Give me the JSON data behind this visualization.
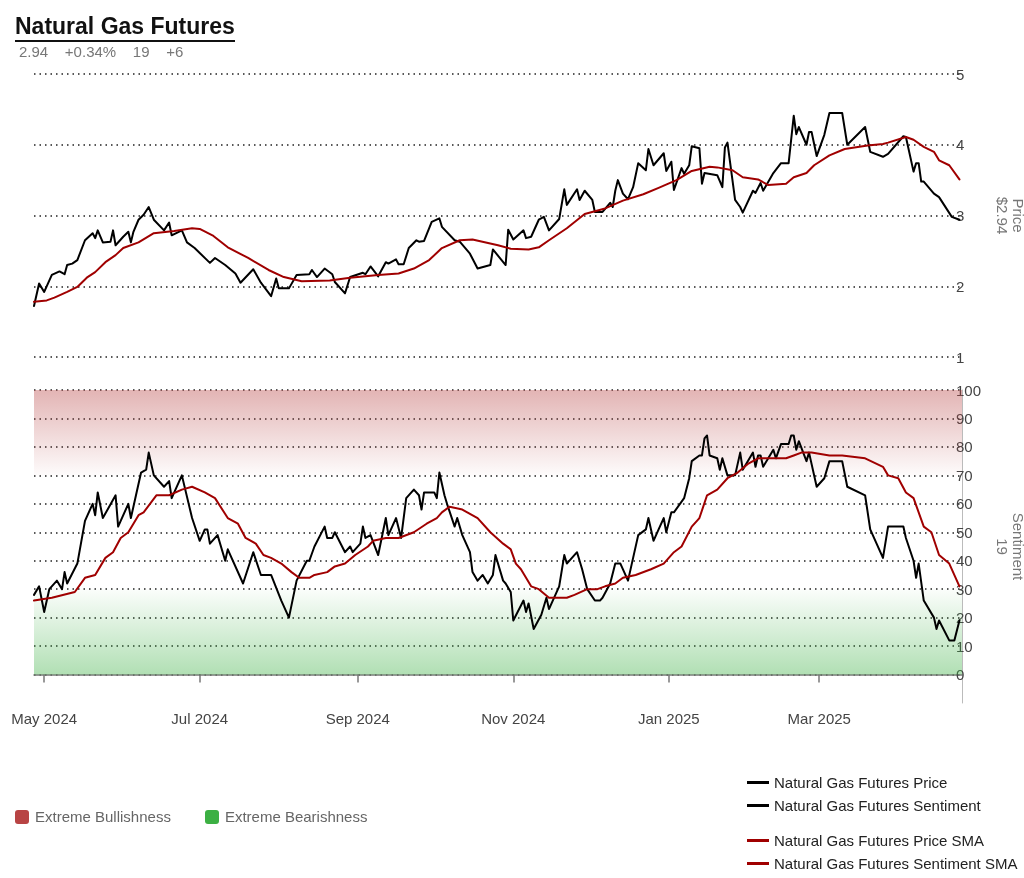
{
  "chart_data": [
    {
      "type": "line",
      "title": "Natural Gas Futures",
      "subtitle": "2.94    +0.34%    19    +6",
      "ylabel": "Price\n$2.94",
      "xlim": [
        "2024-04-27",
        "2025-04-26"
      ],
      "ylim": [
        1,
        5
      ],
      "yticks": [
        1,
        2,
        3,
        4,
        5
      ],
      "grid": "y",
      "tick_labels": "y",
      "legend": "bottom right",
      "series": [
        {
          "name": "Natural Gas Futures Price",
          "color": "#000000",
          "x": [
            "2024-04-27",
            "2024-04-29",
            "2024-05-01",
            "2024-05-04",
            "2024-05-07",
            "2024-05-09",
            "2024-05-10",
            "2024-05-12",
            "2024-05-14",
            "2024-05-17",
            "2024-05-20",
            "2024-05-21",
            "2024-05-22",
            "2024-05-24",
            "2024-05-27",
            "2024-05-28",
            "2024-05-29",
            "2024-06-01",
            "2024-06-03",
            "2024-06-04",
            "2024-06-05",
            "2024-06-07",
            "2024-06-09",
            "2024-06-11",
            "2024-06-13",
            "2024-06-17",
            "2024-06-19",
            "2024-06-20",
            "2024-06-24",
            "2024-06-26",
            "2024-06-29",
            "2024-07-05",
            "2024-07-07",
            "2024-07-11",
            "2024-07-15",
            "2024-07-17",
            "2024-07-22",
            "2024-07-25",
            "2024-07-29",
            "2024-07-31",
            "2024-08-01",
            "2024-08-05",
            "2024-08-08",
            "2024-08-13",
            "2024-08-14",
            "2024-08-16",
            "2024-08-19",
            "2024-08-22",
            "2024-08-23",
            "2024-08-27",
            "2024-08-29",
            "2024-09-03",
            "2024-09-04",
            "2024-09-06",
            "2024-09-09",
            "2024-09-12",
            "2024-09-13",
            "2024-09-16",
            "2024-09-17",
            "2024-09-19",
            "2024-09-21",
            "2024-09-24",
            "2024-09-25",
            "2024-09-27",
            "2024-09-30",
            "2024-10-03",
            "2024-10-04",
            "2024-10-09",
            "2024-10-11",
            "2024-10-15",
            "2024-10-18",
            "2024-10-23",
            "2024-10-24",
            "2024-10-29",
            "2024-10-30",
            "2024-11-01",
            "2024-11-05",
            "2024-11-06",
            "2024-11-08",
            "2024-11-11",
            "2024-11-13",
            "2024-11-15",
            "2024-11-19",
            "2024-11-21",
            "2024-11-22",
            "2024-11-26",
            "2024-11-27",
            "2024-11-29",
            "2024-12-02",
            "2024-12-03",
            "2024-12-06",
            "2024-12-09",
            "2024-12-10",
            "2024-12-11",
            "2024-12-12",
            "2024-12-14",
            "2024-12-16",
            "2024-12-18",
            "2024-12-20",
            "2024-12-23",
            "2024-12-24",
            "2024-12-26",
            "2024-12-30",
            "2024-12-31",
            "2025-01-02",
            "2025-01-03",
            "2025-01-06",
            "2025-01-07",
            "2025-01-09",
            "2025-01-10",
            "2025-01-13",
            "2025-01-14",
            "2025-01-15",
            "2025-01-20",
            "2025-01-22",
            "2025-01-23",
            "2025-01-24",
            "2025-01-27",
            "2025-01-29",
            "2025-01-30",
            "2025-02-03",
            "2025-02-04",
            "2025-02-06",
            "2025-02-07",
            "2025-02-11",
            "2025-02-14",
            "2025-02-17",
            "2025-02-19",
            "2025-02-20",
            "2025-02-21",
            "2025-02-24",
            "2025-02-25",
            "2025-02-26",
            "2025-02-28",
            "2025-03-03",
            "2025-03-05",
            "2025-03-10",
            "2025-03-12",
            "2025-03-19",
            "2025-03-21",
            "2025-03-26",
            "2025-03-28",
            "2025-04-03",
            "2025-04-04",
            "2025-04-07",
            "2025-04-08",
            "2025-04-09",
            "2025-04-10",
            "2025-04-11",
            "2025-04-15",
            "2025-04-17",
            "2025-04-22",
            "2025-04-25"
          ],
          "values": [
            1.72,
            2.04,
            1.92,
            2.16,
            2.21,
            2.17,
            2.3,
            2.32,
            2.37,
            2.65,
            2.75,
            2.68,
            2.79,
            2.62,
            2.63,
            2.79,
            2.58,
            2.7,
            2.77,
            2.62,
            2.77,
            2.94,
            3.01,
            3.12,
            2.94,
            2.79,
            2.9,
            2.72,
            2.79,
            2.62,
            2.54,
            2.33,
            2.4,
            2.3,
            2.18,
            2.05,
            2.24,
            2.05,
            1.86,
            2.11,
            1.97,
            1.97,
            2.16,
            2.17,
            2.23,
            2.13,
            2.25,
            2.17,
            2.06,
            1.9,
            2.13,
            2.19,
            2.17,
            2.28,
            2.14,
            2.34,
            2.32,
            2.38,
            2.31,
            2.31,
            2.54,
            2.65,
            2.63,
            2.64,
            2.91,
            2.96,
            2.84,
            2.65,
            2.63,
            2.46,
            2.25,
            2.3,
            2.52,
            2.3,
            2.8,
            2.66,
            2.79,
            2.68,
            2.7,
            2.94,
            2.98,
            2.79,
            2.95,
            3.37,
            3.15,
            3.37,
            3.22,
            3.35,
            3.22,
            3.05,
            3.05,
            3.18,
            3.12,
            3.35,
            3.5,
            3.31,
            3.23,
            3.4,
            3.74,
            3.64,
            3.94,
            3.71,
            3.88,
            3.63,
            3.76,
            3.36,
            3.67,
            3.59,
            3.71,
            3.98,
            3.95,
            3.45,
            3.6,
            3.57,
            3.4,
            3.96,
            4.03,
            3.22,
            3.12,
            3.04,
            3.35,
            3.32,
            3.46,
            3.35,
            3.6,
            3.74,
            3.74,
            4.41,
            4.15,
            4.25,
            4.0,
            4.18,
            4.18,
            3.84,
            4.14,
            4.45,
            4.45,
            4.0,
            4.25,
            3.9,
            3.83,
            3.87,
            4.12,
            4.11,
            3.62,
            3.74,
            3.74,
            3.48,
            3.48,
            3.31,
            3.26,
            2.98,
            2.94
          ]
        },
        {
          "name": "Natural Gas Futures Price SMA",
          "color": "#a00000",
          "x": [
            "2024-04-27",
            "2024-05-02",
            "2024-05-05",
            "2024-05-10",
            "2024-05-14",
            "2024-05-18",
            "2024-05-21",
            "2024-05-25",
            "2024-05-29",
            "2024-06-01",
            "2024-06-07",
            "2024-06-13",
            "2024-06-21",
            "2024-06-28",
            "2024-07-01",
            "2024-07-06",
            "2024-07-12",
            "2024-07-20",
            "2024-07-28",
            "2024-08-03",
            "2024-08-10",
            "2024-08-21",
            "2024-08-29",
            "2024-09-09",
            "2024-09-17",
            "2024-09-23",
            "2024-09-29",
            "2024-10-04",
            "2024-10-11",
            "2024-10-16",
            "2024-10-26",
            "2024-10-31",
            "2024-11-07",
            "2024-11-11",
            "2024-11-15",
            "2024-11-22",
            "2024-11-29",
            "2024-12-07",
            "2024-12-14",
            "2024-12-22",
            "2024-12-28",
            "2025-01-04",
            "2025-01-10",
            "2025-01-17",
            "2025-01-20",
            "2025-01-26",
            "2025-01-30",
            "2025-02-05",
            "2025-02-09",
            "2025-02-16",
            "2025-02-19",
            "2025-02-24",
            "2025-02-27",
            "2025-03-05",
            "2025-03-11",
            "2025-03-20",
            "2025-03-26",
            "2025-03-28",
            "2025-04-04",
            "2025-04-07",
            "2025-04-11",
            "2025-04-15",
            "2025-04-17",
            "2025-04-21",
            "2025-04-25"
          ],
          "values": [
            1.78,
            1.8,
            1.84,
            1.92,
            1.99,
            2.13,
            2.2,
            2.34,
            2.44,
            2.54,
            2.62,
            2.75,
            2.78,
            2.82,
            2.81,
            2.72,
            2.55,
            2.4,
            2.23,
            2.13,
            2.07,
            2.08,
            2.12,
            2.16,
            2.18,
            2.25,
            2.37,
            2.54,
            2.65,
            2.66,
            2.58,
            2.53,
            2.52,
            2.55,
            2.65,
            2.82,
            3.02,
            3.1,
            3.21,
            3.3,
            3.39,
            3.5,
            3.63,
            3.69,
            3.68,
            3.64,
            3.54,
            3.51,
            3.43,
            3.45,
            3.54,
            3.6,
            3.71,
            3.85,
            3.94,
            3.99,
            4.01,
            4.03,
            4.11,
            4.07,
            3.97,
            3.9,
            3.78,
            3.71,
            3.51
          ]
        }
      ]
    },
    {
      "type": "line",
      "ylabel": "Sentiment\n19",
      "xlim": [
        "2024-04-27",
        "2025-04-26"
      ],
      "xticks": [
        {
          "value": "2024-05-01",
          "label": "May 2024"
        },
        {
          "value": "2024-07-01",
          "label": "Jul 2024"
        },
        {
          "value": "2024-09-01",
          "label": "Sep 2024"
        },
        {
          "value": "2024-11-01",
          "label": "Nov 2024"
        },
        {
          "value": "2025-01-01",
          "label": "Jan 2025"
        },
        {
          "value": "2025-03-01",
          "label": "Mar 2025"
        }
      ],
      "ylim": [
        -10,
        100
      ],
      "yticks": [
        0,
        10,
        20,
        30,
        40,
        50,
        60,
        70,
        80,
        90,
        100
      ],
      "grid": "y",
      "legend": "bottom right",
      "bands": [
        {
          "axis": "y",
          "from": 70,
          "to": 100,
          "label": "Extreme Bullishness",
          "color": "#b84444"
        },
        {
          "axis": "y",
          "from": 0,
          "to": 30,
          "label": "Extreme Bearishness",
          "color": "#3cb043"
        }
      ],
      "series": [
        {
          "name": "Natural Gas Futures Sentiment",
          "color": "#000000",
          "x": [
            "2024-04-27",
            "2024-04-29",
            "2024-05-01",
            "2024-05-03",
            "2024-05-06",
            "2024-05-08",
            "2024-05-09",
            "2024-05-10",
            "2024-05-14",
            "2024-05-15",
            "2024-05-17",
            "2024-05-20",
            "2024-05-21",
            "2024-05-22",
            "2024-05-24",
            "2024-05-29",
            "2024-05-30",
            "2024-06-03",
            "2024-06-04",
            "2024-06-06",
            "2024-06-08",
            "2024-06-10",
            "2024-06-11",
            "2024-06-13",
            "2024-06-17",
            "2024-06-19",
            "2024-06-20",
            "2024-06-24",
            "2024-06-28",
            "2024-07-01",
            "2024-07-03",
            "2024-07-04",
            "2024-07-05",
            "2024-07-08",
            "2024-07-11",
            "2024-07-12",
            "2024-07-18",
            "2024-07-22",
            "2024-07-25",
            "2024-07-29",
            "2024-08-02",
            "2024-08-05",
            "2024-08-08",
            "2024-08-12",
            "2024-08-13",
            "2024-08-15",
            "2024-08-19",
            "2024-08-20",
            "2024-08-22",
            "2024-08-23",
            "2024-08-27",
            "2024-08-29",
            "2024-08-30",
            "2024-09-02",
            "2024-09-03",
            "2024-09-04",
            "2024-09-06",
            "2024-09-09",
            "2024-09-12",
            "2024-09-13",
            "2024-09-16",
            "2024-09-18",
            "2024-09-20",
            "2024-09-23",
            "2024-09-25",
            "2024-09-26",
            "2024-09-27",
            "2024-10-01",
            "2024-10-02",
            "2024-10-03",
            "2024-10-05",
            "2024-10-06",
            "2024-10-09",
            "2024-10-10",
            "2024-10-12",
            "2024-10-15",
            "2024-10-16",
            "2024-10-18",
            "2024-10-20",
            "2024-10-22",
            "2024-10-24",
            "2024-10-25",
            "2024-10-28",
            "2024-10-29",
            "2024-10-31",
            "2024-11-01",
            "2024-11-05",
            "2024-11-06",
            "2024-11-07",
            "2024-11-09",
            "2024-11-12",
            "2024-11-14",
            "2024-11-15",
            "2024-11-19",
            "2024-11-21",
            "2024-11-22",
            "2024-11-26",
            "2024-11-28",
            "2024-11-30",
            "2024-12-03",
            "2024-12-05",
            "2024-12-06",
            "2024-12-09",
            "2024-12-11",
            "2024-12-13",
            "2024-12-16",
            "2024-12-18",
            "2024-12-20",
            "2024-12-23",
            "2024-12-24",
            "2024-12-26",
            "2024-12-28",
            "2024-12-30",
            "2024-12-31",
            "2025-01-02",
            "2025-01-03",
            "2025-01-07",
            "2025-01-09",
            "2025-01-10",
            "2025-01-13",
            "2025-01-14",
            "2025-01-15",
            "2025-01-16",
            "2025-01-17",
            "2025-01-20",
            "2025-01-21",
            "2025-01-22",
            "2025-01-24",
            "2025-01-27",
            "2025-01-29",
            "2025-01-30",
            "2025-02-03",
            "2025-02-04",
            "2025-02-05",
            "2025-02-06",
            "2025-02-07",
            "2025-02-09",
            "2025-02-11",
            "2025-02-12",
            "2025-02-14",
            "2025-02-17",
            "2025-02-18",
            "2025-02-19",
            "2025-02-20",
            "2025-02-21",
            "2025-02-24",
            "2025-02-25",
            "2025-02-28",
            "2025-03-03",
            "2025-03-05",
            "2025-03-10",
            "2025-03-12",
            "2025-03-19",
            "2025-03-21",
            "2025-03-26",
            "2025-03-28",
            "2025-04-03",
            "2025-04-04",
            "2025-04-07",
            "2025-04-08",
            "2025-04-09",
            "2025-04-11",
            "2025-04-15",
            "2025-04-16",
            "2025-04-17",
            "2025-04-21",
            "2025-04-23",
            "2025-04-25"
          ],
          "values": [
            28,
            31,
            22,
            30,
            33,
            30,
            36,
            32,
            39,
            44,
            54,
            60,
            56,
            64,
            55,
            63,
            52,
            60,
            55,
            63,
            71,
            72,
            78,
            70,
            66,
            68,
            62,
            70,
            55,
            47,
            51,
            51,
            46,
            49,
            40,
            44,
            32,
            43,
            35,
            35,
            26,
            20,
            33,
            40,
            40,
            45,
            52,
            48,
            48,
            50,
            43,
            45,
            43,
            46,
            52,
            48,
            49,
            42,
            55,
            49,
            55,
            48,
            62,
            65,
            63,
            58,
            64,
            64,
            62,
            71,
            63,
            60,
            52,
            55,
            49,
            43,
            36,
            33,
            35,
            32,
            35,
            42,
            33,
            32,
            29,
            19,
            26,
            22,
            25,
            16,
            21,
            27,
            23,
            31,
            42,
            39,
            43,
            37,
            30,
            26,
            26,
            27,
            32,
            39,
            39,
            33,
            41,
            49,
            51,
            55,
            47,
            51,
            55,
            50,
            57,
            57,
            62,
            69,
            75,
            77,
            77,
            83,
            84,
            77,
            76,
            72,
            76,
            70,
            70,
            78,
            72,
            78,
            73,
            77,
            77,
            73,
            76,
            79,
            76,
            81,
            81,
            84,
            84,
            79,
            82,
            75,
            78,
            66,
            69,
            75,
            75,
            66,
            63,
            51,
            41,
            52,
            52,
            48,
            40,
            34,
            39,
            26,
            20,
            16,
            19,
            12,
            12,
            19
          ]
        },
        {
          "name": "Natural Gas Futures Sentiment SMA",
          "color": "#a00000",
          "x": [
            "2024-04-27",
            "2024-05-04",
            "2024-05-13",
            "2024-05-17",
            "2024-05-21",
            "2024-05-25",
            "2024-05-28",
            "2024-05-31",
            "2024-06-03",
            "2024-06-07",
            "2024-06-09",
            "2024-06-14",
            "2024-06-19",
            "2024-06-24",
            "2024-06-28",
            "2024-07-03",
            "2024-07-07",
            "2024-07-12",
            "2024-07-16",
            "2024-07-19",
            "2024-07-23",
            "2024-07-26",
            "2024-07-29",
            "2024-08-02",
            "2024-08-06",
            "2024-08-09",
            "2024-08-13",
            "2024-08-15",
            "2024-08-20",
            "2024-08-23",
            "2024-08-27",
            "2024-08-31",
            "2024-09-05",
            "2024-09-07",
            "2024-09-12",
            "2024-09-17",
            "2024-09-23",
            "2024-09-28",
            "2024-10-02",
            "2024-10-04",
            "2024-10-07",
            "2024-10-12",
            "2024-10-18",
            "2024-10-23",
            "2024-10-28",
            "2024-10-31",
            "2024-11-02",
            "2024-11-04",
            "2024-11-08",
            "2024-11-11",
            "2024-11-15",
            "2024-11-19",
            "2024-11-22",
            "2024-11-25",
            "2024-11-30",
            "2024-12-04",
            "2024-12-07",
            "2024-12-11",
            "2024-12-14",
            "2024-12-19",
            "2024-12-25",
            "2024-12-30",
            "2025-01-03",
            "2025-01-06",
            "2025-01-10",
            "2025-01-13",
            "2025-01-16",
            "2025-01-20",
            "2025-01-24",
            "2025-01-28",
            "2025-02-01",
            "2025-02-05",
            "2025-02-11",
            "2025-02-16",
            "2025-02-19",
            "2025-02-22",
            "2025-02-26",
            "2025-03-05",
            "2025-03-10",
            "2025-03-19",
            "2025-03-26",
            "2025-03-28",
            "2025-04-01",
            "2025-04-04",
            "2025-04-07",
            "2025-04-11",
            "2025-04-14",
            "2025-04-17",
            "2025-04-21",
            "2025-04-25"
          ],
          "values": [
            26,
            27,
            29,
            34,
            35,
            41,
            43,
            48,
            50,
            56,
            57,
            63,
            63,
            65,
            66,
            64,
            62,
            55,
            53,
            48,
            46,
            42,
            41,
            39,
            36,
            34,
            34,
            35,
            36,
            38,
            39,
            42,
            45,
            47,
            48,
            48,
            50,
            53,
            55,
            57,
            59,
            58,
            55,
            50,
            46,
            44,
            39,
            37,
            31,
            30,
            27,
            27,
            27,
            28,
            30,
            30,
            31,
            32,
            34,
            35,
            37,
            39,
            43,
            45,
            52,
            55,
            63,
            65,
            69,
            71,
            74,
            76,
            76,
            76,
            77,
            78,
            78,
            77,
            77,
            76,
            73,
            70,
            69,
            64,
            62,
            52,
            50,
            42,
            39,
            31
          ]
        }
      ]
    }
  ]
}
